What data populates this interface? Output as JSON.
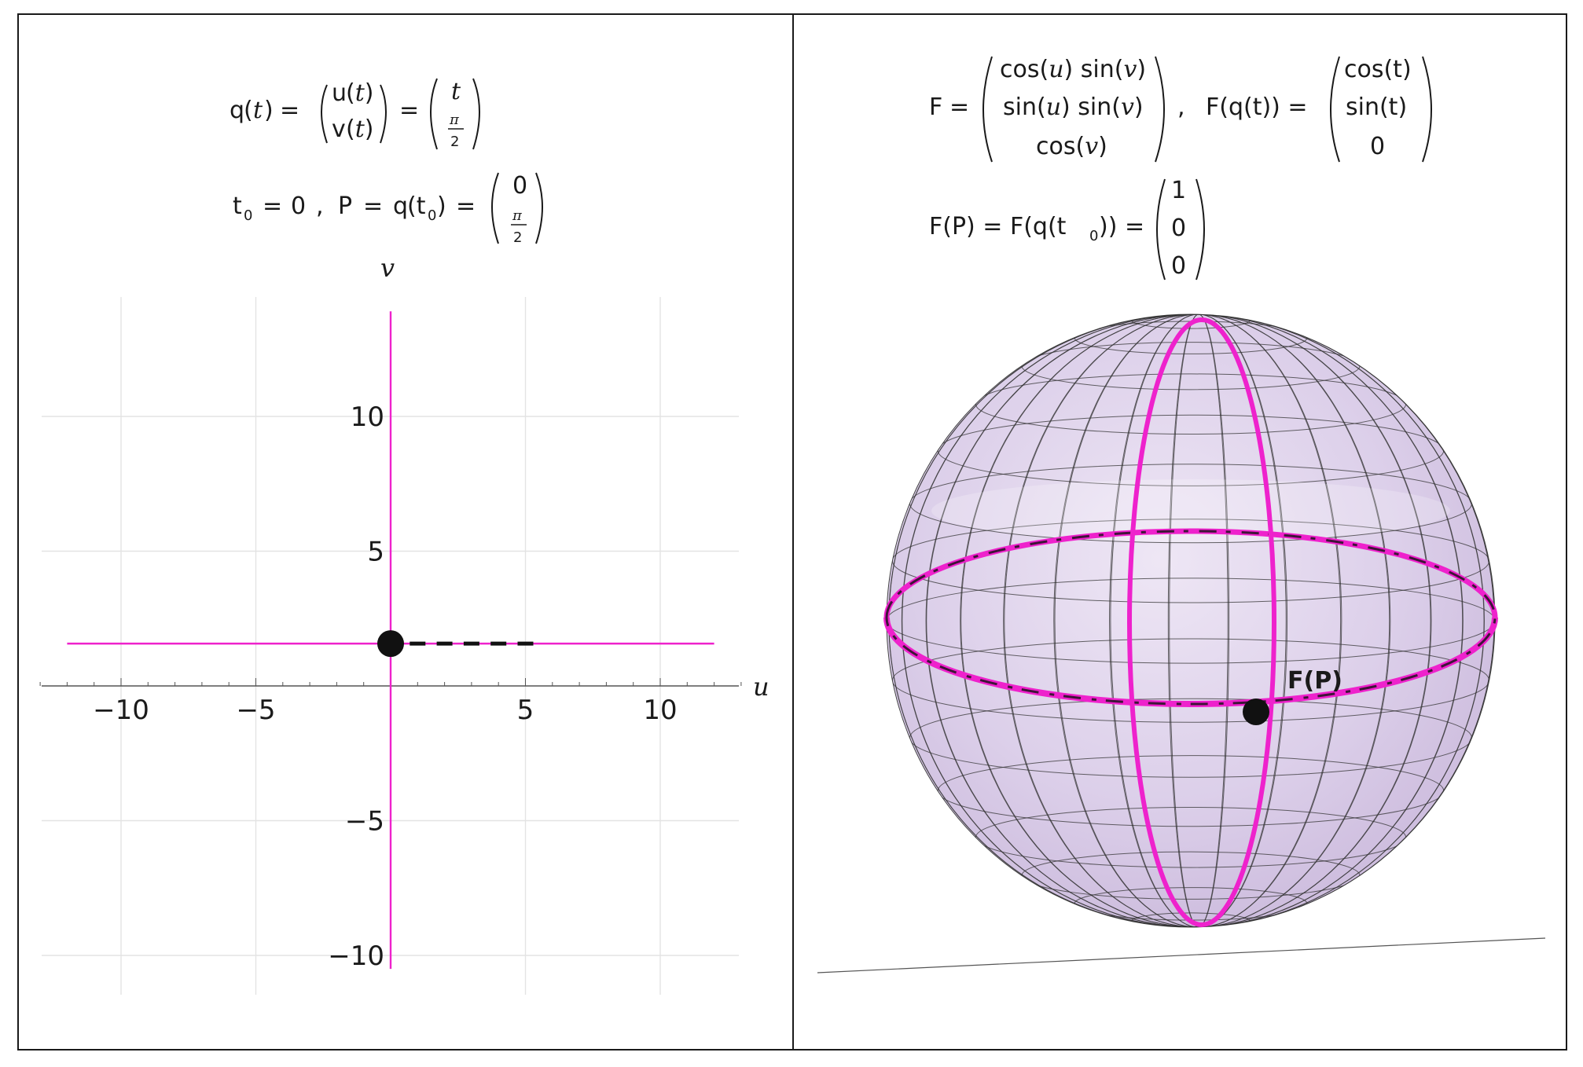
{
  "accent": "#ee22cc",
  "point_color": "#111111",
  "left": {
    "formula": {
      "q": "q",
      "t_var": "t",
      "u_fn": "u",
      "v_fn": "v",
      "eq": "=",
      "pi": "π",
      "two": "2",
      "t0": "t",
      "t0_sub": "0",
      "zero": "0",
      "comma": ",",
      "P": "P"
    },
    "plot": {
      "xlabel": "u",
      "ylabel": "v",
      "xticks": [
        -10,
        -5,
        5,
        10
      ],
      "yticks": [
        -10,
        -5,
        5,
        10
      ],
      "xrange": [
        -13,
        13
      ],
      "yrange": [
        -11.5,
        14.5
      ],
      "horizontal_line_v": 1.5708,
      "vertical_line_u": 0,
      "point": {
        "u": 0,
        "v": 1.5708
      },
      "dashes_u": [
        1.0,
        2.0,
        3.0,
        4.0,
        5.0
      ]
    }
  },
  "right": {
    "formula": {
      "F": "F",
      "eq": "=",
      "row1": [
        "cos(",
        "u",
        ") sin(",
        "v",
        ")"
      ],
      "row2": [
        "sin(",
        "u",
        ") sin(",
        "v",
        ")"
      ],
      "row3": [
        "cos(",
        "v",
        ")"
      ],
      "Fq_label": "F(q(t)) =",
      "Fq_rows": [
        "cos(t)",
        "sin(t)",
        "0"
      ],
      "FP_label": "F(P) = F(q(t",
      "FP_sub": "0",
      "FP_close": ")) =",
      "FP_rows": [
        "1",
        "0",
        "0"
      ],
      "separator": ","
    },
    "sphere": {
      "point_label": "F(P)",
      "fill": "#d8c8e8",
      "mesh_color": "#333333"
    }
  }
}
